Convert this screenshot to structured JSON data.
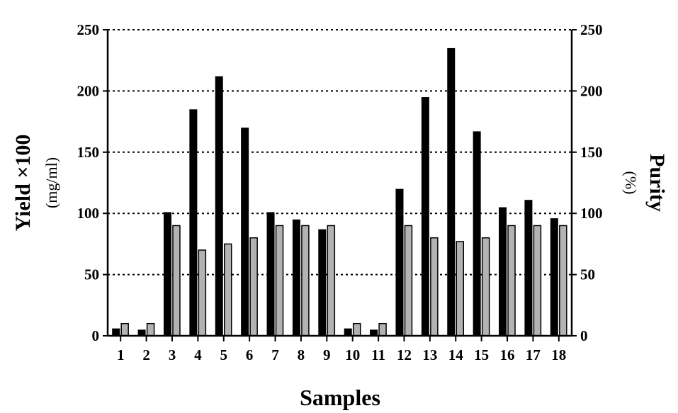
{
  "chart_data": {
    "type": "bar",
    "categories": [
      "1",
      "2",
      "3",
      "4",
      "5",
      "6",
      "7",
      "8",
      "9",
      "10",
      "11",
      "12",
      "13",
      "14",
      "15",
      "16",
      "17",
      "18"
    ],
    "series": [
      {
        "color": "#000000",
        "axis": "left",
        "values": [
          6,
          5,
          101,
          185,
          212,
          170,
          101,
          95,
          87,
          6,
          5,
          120,
          195,
          235,
          167,
          105,
          111,
          96
        ]
      },
      {
        "color": "#b3b3b3",
        "axis": "right",
        "values": [
          10,
          10,
          90,
          70,
          75,
          80,
          90,
          90,
          90,
          10,
          10,
          90,
          80,
          77,
          80,
          90,
          90,
          90
        ]
      }
    ],
    "xlabel": "Samples",
    "ylabel_left": "Yield ×100",
    "ylabel_left_unit": "(mg/ml)",
    "ylabel_right": "Purity",
    "ylabel_right_unit": "(%)",
    "ylim": [
      0,
      250
    ],
    "yticks": [
      "0",
      "50",
      "100",
      "150",
      "200",
      "250"
    ],
    "grid": "dotted horizontal"
  }
}
